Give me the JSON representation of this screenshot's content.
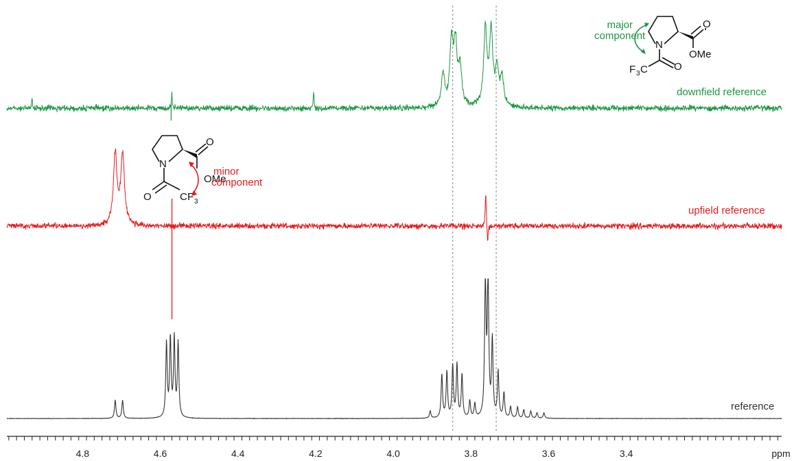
{
  "chart_data": {
    "type": "line",
    "title": "",
    "xlabel": "ppm",
    "ylabel": "",
    "xlim": [
      4.995,
      3.0
    ],
    "x_reversed": true,
    "x_ticks": [
      "4.8",
      "4.6",
      "4.4",
      "4.2",
      "4.0",
      "3.8",
      "3.6",
      "3.4"
    ],
    "grid": false,
    "legend": "labels placed at right end of each trace",
    "reference_lines_ppm": [
      3.847,
      3.735
    ],
    "series": [
      {
        "name": "downfield reference",
        "color": "#1a9641",
        "kind": "1D selective NOE difference (noisy)",
        "peaks": [
          {
            "ppm": 4.93,
            "rel": 0.15
          },
          {
            "ppm": 4.57,
            "rel": 0.22
          },
          {
            "ppm": 4.205,
            "rel": 0.22
          },
          {
            "ppm": 3.872,
            "rel": 0.42
          },
          {
            "ppm": 3.85,
            "rel": 0.82
          },
          {
            "ppm": 3.84,
            "rel": 0.76
          },
          {
            "ppm": 3.828,
            "rel": 0.5
          },
          {
            "ppm": 3.763,
            "rel": 1.0
          },
          {
            "ppm": 3.748,
            "rel": 0.95
          },
          {
            "ppm": 3.733,
            "rel": 0.45
          },
          {
            "ppm": 3.72,
            "rel": 0.38
          }
        ]
      },
      {
        "name": "upfield reference",
        "color": "#e41a1c",
        "kind": "1D selective NOE difference (noisy)",
        "peaks": [
          {
            "ppm": 4.716,
            "rel": 1.0
          },
          {
            "ppm": 4.697,
            "rel": 0.98
          },
          {
            "ppm": 3.762,
            "rel": 0.47
          },
          {
            "ppm": 3.757,
            "rel": -0.25
          }
        ],
        "artifact_ppm": 4.57
      },
      {
        "name": "reference",
        "color": "#333333",
        "kind": "1H spectrum",
        "peaks": [
          {
            "ppm": 4.716,
            "rel": 0.13
          },
          {
            "ppm": 4.697,
            "rel": 0.13
          },
          {
            "ppm": 4.584,
            "rel": 0.53
          },
          {
            "ppm": 4.574,
            "rel": 0.56
          },
          {
            "ppm": 4.564,
            "rel": 0.56
          },
          {
            "ppm": 4.554,
            "rel": 0.53
          },
          {
            "ppm": 3.905,
            "rel": 0.05
          },
          {
            "ppm": 3.875,
            "rel": 0.31
          },
          {
            "ppm": 3.862,
            "rel": 0.33
          },
          {
            "ppm": 3.847,
            "rel": 0.37
          },
          {
            "ppm": 3.836,
            "rel": 0.38
          },
          {
            "ppm": 3.823,
            "rel": 0.31
          },
          {
            "ppm": 3.803,
            "rel": 0.12
          },
          {
            "ppm": 3.79,
            "rel": 0.1
          },
          {
            "ppm": 3.763,
            "rel": 1.0
          },
          {
            "ppm": 3.756,
            "rel": 1.0
          },
          {
            "ppm": 3.745,
            "rel": 0.55
          },
          {
            "ppm": 3.73,
            "rel": 0.33
          },
          {
            "ppm": 3.715,
            "rel": 0.18
          },
          {
            "ppm": 3.698,
            "rel": 0.08
          },
          {
            "ppm": 3.68,
            "rel": 0.08
          },
          {
            "ppm": 3.664,
            "rel": 0.06
          },
          {
            "ppm": 3.646,
            "rel": 0.05
          },
          {
            "ppm": 3.63,
            "rel": 0.04
          },
          {
            "ppm": 3.612,
            "rel": 0.04
          }
        ],
        "clipped_top": true
      }
    ]
  },
  "annotations": {
    "major_component": [
      "major",
      "component"
    ],
    "minor_component": [
      "minor",
      "component"
    ],
    "downfield_label": "downfield reference",
    "upfield_label": "upfield reference",
    "reference_label": "reference",
    "axis_unit": "ppm"
  },
  "structure": {
    "atoms": {
      "N": "N",
      "O": "O",
      "OMe": "OMe",
      "F3": "F",
      "sub3": "3",
      "C": "C"
    }
  }
}
